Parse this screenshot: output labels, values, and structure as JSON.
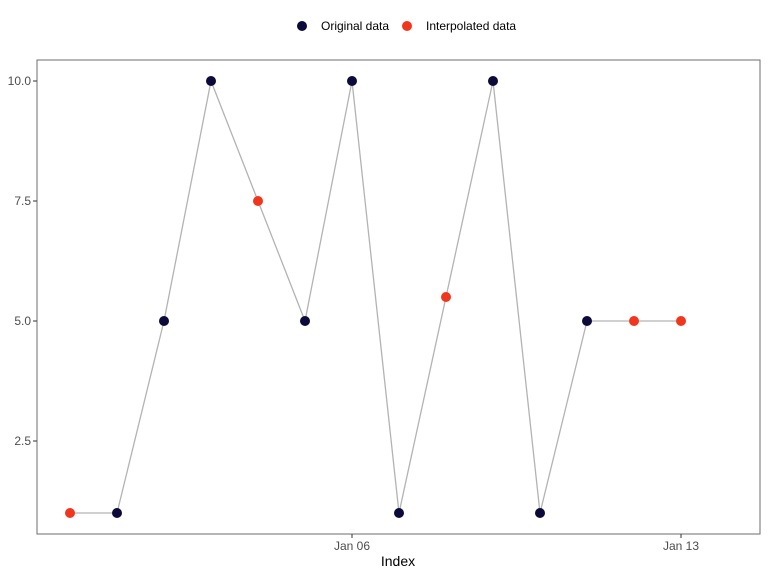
{
  "chart_data": {
    "type": "line",
    "xlabel": "Index",
    "ylabel": "",
    "title": "",
    "x_ticks": [
      {
        "x": "2020-01-06",
        "label": "Jan 06"
      },
      {
        "x": "2020-01-13",
        "label": "Jan 13"
      }
    ],
    "y_ticks": [
      {
        "value": 2.5,
        "label": "2.5"
      },
      {
        "value": 5.0,
        "label": "5.0"
      },
      {
        "value": 7.5,
        "label": "7.5"
      },
      {
        "value": 10.0,
        "label": "10.0"
      }
    ],
    "xlim": [
      "2019-12-31",
      "2020-01-14"
    ],
    "ylim": [
      0.6,
      10.4
    ],
    "grid": false,
    "legend_position": "top",
    "line_color": "#b3b3b3",
    "series": [
      {
        "name": "Original data",
        "color": "#0b0a3a"
      },
      {
        "name": "Interpolated data",
        "color": "#f2361e"
      }
    ],
    "points": [
      {
        "x": "2019-12-31",
        "y": 1,
        "series": "Interpolated data"
      },
      {
        "x": "2020-01-01",
        "y": 1,
        "series": "Original data"
      },
      {
        "x": "2020-01-02",
        "y": 5,
        "series": "Original data"
      },
      {
        "x": "2020-01-03",
        "y": 10,
        "series": "Original data"
      },
      {
        "x": "2020-01-04",
        "y": 7.5,
        "series": "Interpolated data"
      },
      {
        "x": "2020-01-05",
        "y": 5,
        "series": "Original data"
      },
      {
        "x": "2020-01-06",
        "y": 10,
        "series": "Original data"
      },
      {
        "x": "2020-01-07",
        "y": 1,
        "series": "Original data"
      },
      {
        "x": "2020-01-08",
        "y": 5.5,
        "series": "Interpolated data"
      },
      {
        "x": "2020-01-09",
        "y": 10,
        "series": "Original data"
      },
      {
        "x": "2020-01-10",
        "y": 1,
        "series": "Original data"
      },
      {
        "x": "2020-01-11",
        "y": 5,
        "series": "Original data"
      },
      {
        "x": "2020-01-12",
        "y": 5,
        "series": "Interpolated data"
      },
      {
        "x": "2020-01-13",
        "y": 5,
        "series": "Interpolated data"
      }
    ]
  }
}
